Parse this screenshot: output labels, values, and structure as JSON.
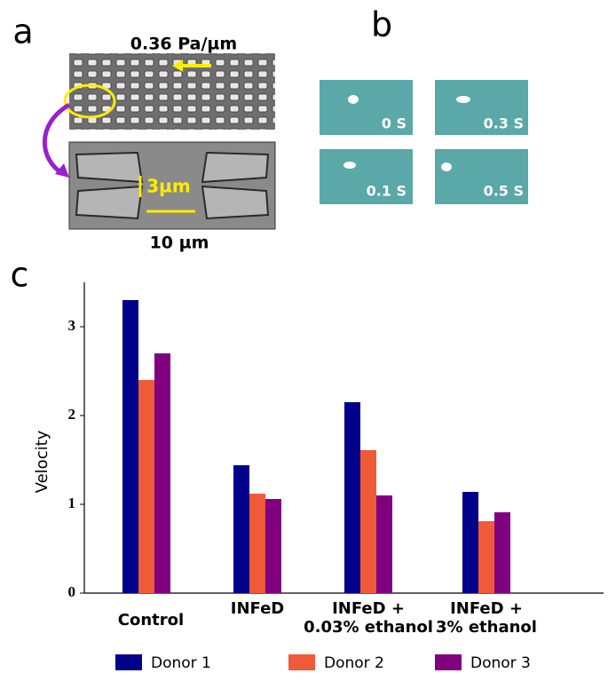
{
  "panels": {
    "a": {
      "label": "a",
      "pressure": "0.36 Pa/µm",
      "gap": "3µm",
      "width": "10 µm"
    },
    "b": {
      "label": "b",
      "frames": [
        "0 S",
        "0.3 S",
        "0.1 S",
        "0.5 S"
      ]
    },
    "c": {
      "label": "c"
    }
  },
  "chart_data": {
    "type": "bar",
    "y_label": "Velocity",
    "categories": [
      "Control",
      "INFeD",
      "INFeD +\n0.03% ethanol",
      "INFeD +\n3% ethanol"
    ],
    "series": [
      {
        "name": "Donor 1",
        "color": "#00008b",
        "values": [
          3.3,
          1.44,
          2.15,
          1.14
        ]
      },
      {
        "name": "Donor 2",
        "color": "#f05a38",
        "values": [
          2.4,
          1.12,
          1.61,
          0.81
        ]
      },
      {
        "name": "Donor 3",
        "color": "#800080",
        "values": [
          2.7,
          1.06,
          1.1,
          0.91
        ]
      }
    ],
    "ylim": [
      0,
      3.5
    ],
    "yticks": [
      0,
      1,
      2,
      3
    ],
    "grid": false
  }
}
